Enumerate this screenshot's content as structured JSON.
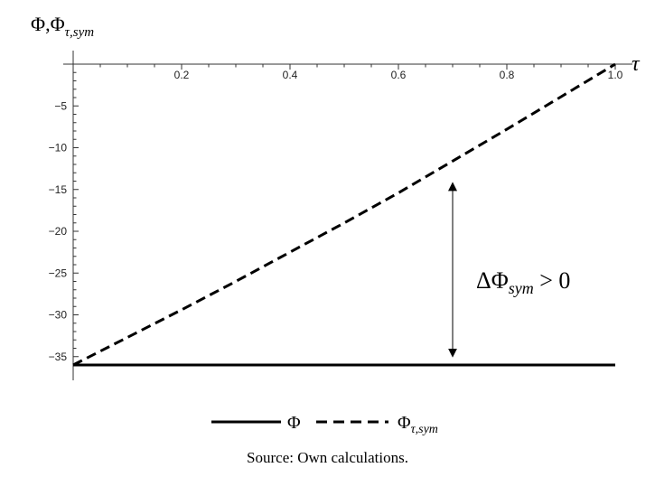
{
  "chart_data": {
    "type": "line",
    "ylabel": "Φ,Φ",
    "ylabel_sub": "τ,sym",
    "xlabel": "τ",
    "xlim": [
      0,
      1.0
    ],
    "ylim": [
      -37,
      0
    ],
    "x_ticks": [
      {
        "value": 0.2,
        "label": "0.2"
      },
      {
        "value": 0.4,
        "label": "0.4"
      },
      {
        "value": 0.6,
        "label": "0.6"
      },
      {
        "value": 0.8,
        "label": "0.8"
      },
      {
        "value": 1.0,
        "label": "1.0"
      }
    ],
    "y_ticks": [
      {
        "value": -5,
        "label": "−5"
      },
      {
        "value": -10,
        "label": "−10"
      },
      {
        "value": -15,
        "label": "−15"
      },
      {
        "value": -20,
        "label": "−20"
      },
      {
        "value": -25,
        "label": "−25"
      },
      {
        "value": -30,
        "label": "−30"
      },
      {
        "value": -35,
        "label": "−35"
      }
    ],
    "series": [
      {
        "name": "Φ",
        "style": "solid",
        "color": "#000000",
        "x": [
          0,
          0.1,
          0.2,
          0.3,
          0.4,
          0.5,
          0.6,
          0.7,
          0.8,
          0.9,
          1.0
        ],
        "y": [
          -36,
          -36,
          -36,
          -36,
          -36,
          -36,
          -36,
          -36,
          -36,
          -36,
          -36
        ]
      },
      {
        "name": "Φ",
        "name_sub": "τ,sym",
        "style": "dashed",
        "color": "#000000",
        "x": [
          0,
          0.1,
          0.2,
          0.3,
          0.4,
          0.5,
          0.6,
          0.7,
          0.8,
          0.9,
          1.0
        ],
        "y": [
          -36,
          -32.7,
          -29.4,
          -26.0,
          -22.5,
          -19.0,
          -15.4,
          -11.6,
          -7.8,
          -3.9,
          0
        ]
      }
    ],
    "annotation": {
      "text": "ΔΦ",
      "text_sub": "sym",
      "text_tail": " > 0",
      "arrow_x": 0.7,
      "arrow_from_y": -14.2,
      "arrow_to_y": -35.0
    },
    "legend_placement": "bottom-center",
    "grid": false
  },
  "source_note": "Source: Own calculations."
}
